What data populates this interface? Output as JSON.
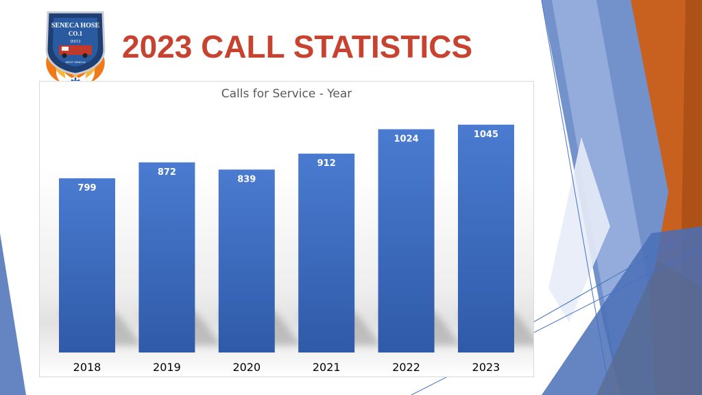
{
  "slide": {
    "title": "2023 CALL STATISTICS",
    "title_color": "#c7432f",
    "logo": {
      "icon": "fire-department-logo",
      "text_lines": [
        "SENECA HOSE",
        "CO.1",
        "DIST.2",
        "WEST SENECA"
      ]
    },
    "accent_colors": [
      "#4472c4",
      "#8faadc",
      "#c55a11",
      "#d0cece"
    ]
  },
  "chart_data": {
    "type": "bar",
    "title": "Calls for Service - Year",
    "categories": [
      "2018",
      "2019",
      "2020",
      "2021",
      "2022",
      "2023"
    ],
    "values": [
      799,
      872,
      839,
      912,
      1024,
      1045
    ],
    "data_labels": [
      "799",
      "872",
      "839",
      "912",
      "1024",
      "1045"
    ],
    "ylim": [
      0,
      1060
    ],
    "bar_color": "#4472c4",
    "grid": false,
    "legend": "none",
    "xlabel": "",
    "ylabel": ""
  }
}
